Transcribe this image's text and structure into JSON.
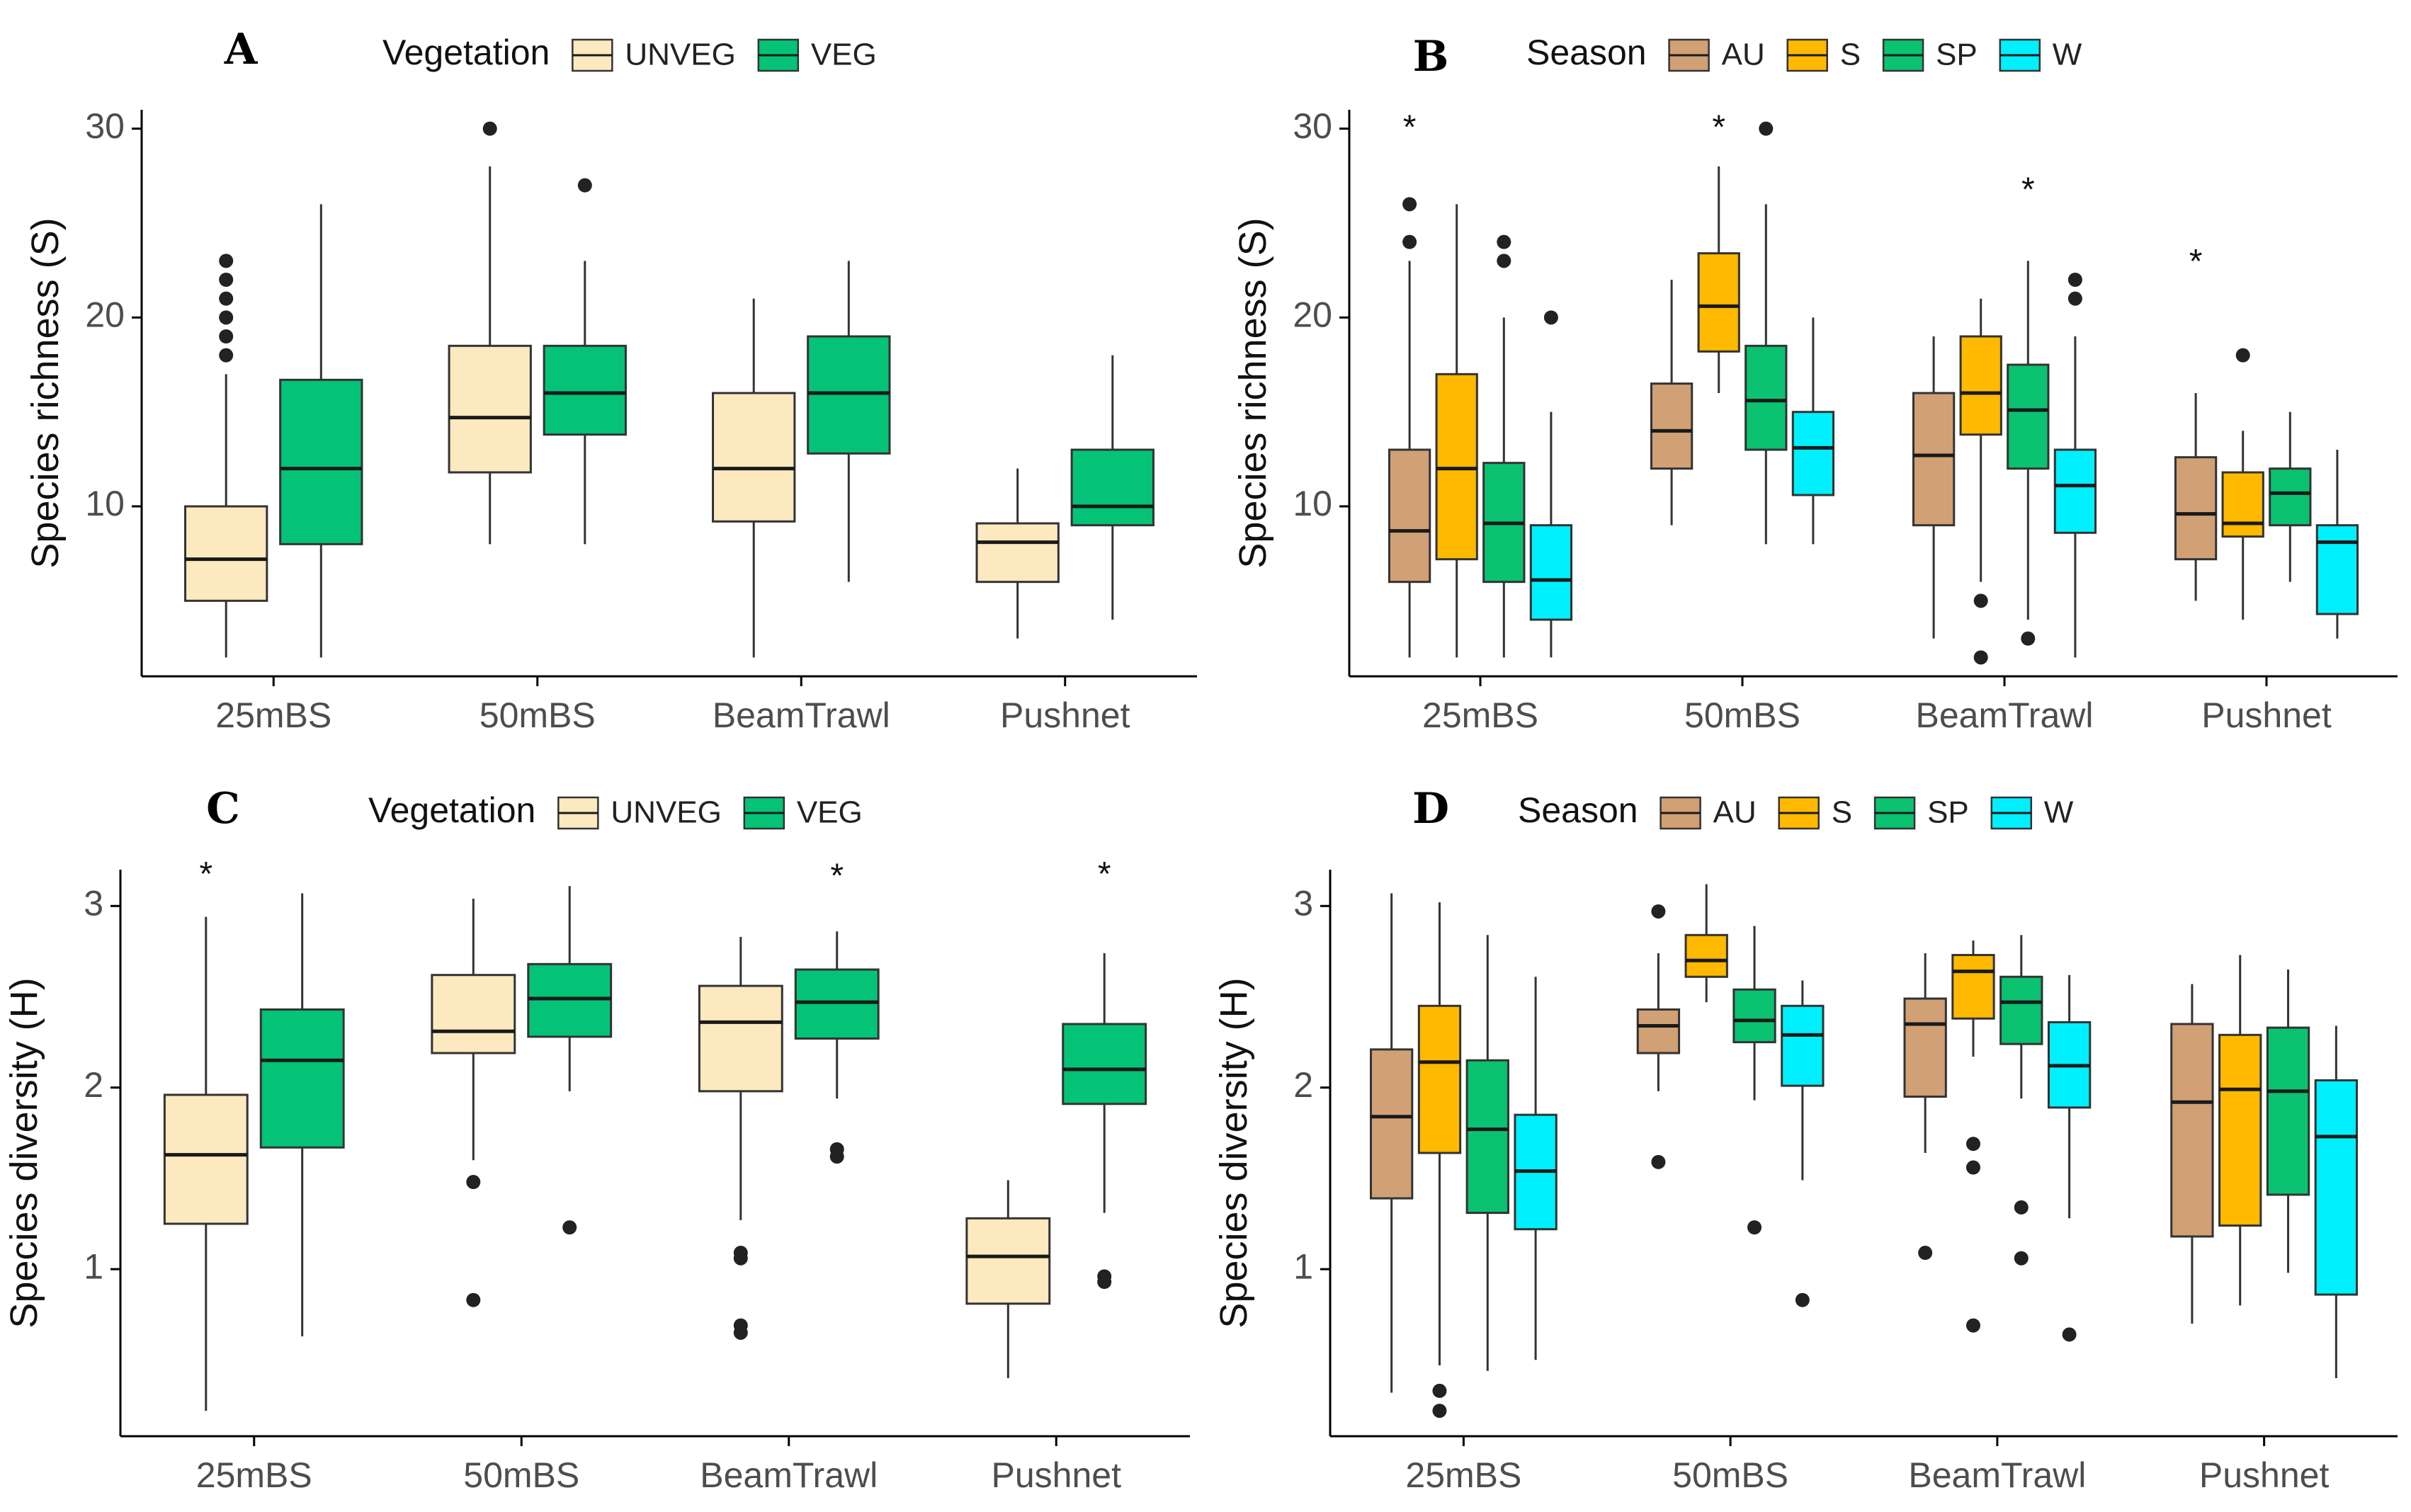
{
  "colors": {
    "UNVEG": "#fde9bf",
    "VEG": "#04c377",
    "AU": "#d1a075",
    "S": "#ffb901",
    "SP": "#0ac270",
    "W": "#00f0ff",
    "median": "#1a1a1a",
    "whisker": "#333333",
    "outlier": "#222222",
    "axis": "#000000"
  },
  "chart_data": [
    {
      "id": "A",
      "type": "boxplot",
      "legend_title": "Vegetation",
      "groups": [
        "UNVEG",
        "VEG"
      ],
      "categories": [
        "25mBS",
        "50mBS",
        "BeamTrawl",
        "Pushnet"
      ],
      "ylabel": "Species richness (S)",
      "ylim": [
        1,
        31
      ],
      "yticks": [
        10,
        20,
        30
      ],
      "boxes": [
        {
          "category": "25mBS",
          "group": "UNVEG",
          "min": 2,
          "q1": 5,
          "median": 7.2,
          "q3": 10,
          "max": 17,
          "outliers": [
            18,
            19,
            20,
            21,
            22,
            23
          ]
        },
        {
          "category": "25mBS",
          "group": "VEG",
          "min": 2,
          "q1": 8,
          "median": 12,
          "q3": 16.7,
          "max": 26,
          "outliers": []
        },
        {
          "category": "50mBS",
          "group": "UNVEG",
          "min": 8,
          "q1": 11.8,
          "median": 14.7,
          "q3": 18.5,
          "max": 28,
          "outliers": [
            30
          ]
        },
        {
          "category": "50mBS",
          "group": "VEG",
          "min": 8,
          "q1": 13.8,
          "median": 16,
          "q3": 18.5,
          "max": 23,
          "outliers": [
            27
          ]
        },
        {
          "category": "BeamTrawl",
          "group": "UNVEG",
          "min": 2,
          "q1": 9.2,
          "median": 12,
          "q3": 16,
          "max": 21,
          "outliers": []
        },
        {
          "category": "BeamTrawl",
          "group": "VEG",
          "min": 6,
          "q1": 12.8,
          "median": 16,
          "q3": 19,
          "max": 23,
          "outliers": []
        },
        {
          "category": "Pushnet",
          "group": "UNVEG",
          "min": 3,
          "q1": 6,
          "median": 8.1,
          "q3": 9.1,
          "max": 12,
          "outliers": []
        },
        {
          "category": "Pushnet",
          "group": "VEG",
          "min": 4,
          "q1": 9,
          "median": 10,
          "q3": 13,
          "max": 18,
          "outliers": []
        }
      ],
      "significance": []
    },
    {
      "id": "B",
      "type": "boxplot",
      "legend_title": "Season",
      "groups": [
        "AU",
        "S",
        "SP",
        "W"
      ],
      "categories": [
        "25mBS",
        "50mBS",
        "BeamTrawl",
        "Pushnet"
      ],
      "ylabel": "Species richness (S)",
      "ylim": [
        1,
        31
      ],
      "yticks": [
        10,
        20,
        30
      ],
      "boxes": [
        {
          "category": "25mBS",
          "group": "AU",
          "min": 2,
          "q1": 6,
          "median": 8.7,
          "q3": 13,
          "max": 23,
          "outliers": [
            24,
            26
          ]
        },
        {
          "category": "25mBS",
          "group": "S",
          "min": 2,
          "q1": 7.2,
          "median": 12,
          "q3": 17,
          "max": 26,
          "outliers": []
        },
        {
          "category": "25mBS",
          "group": "SP",
          "min": 2,
          "q1": 6,
          "median": 9.1,
          "q3": 12.3,
          "max": 20,
          "outliers": [
            23,
            24
          ]
        },
        {
          "category": "25mBS",
          "group": "W",
          "min": 2,
          "q1": 4,
          "median": 6.1,
          "q3": 9,
          "max": 15,
          "outliers": [
            20
          ]
        },
        {
          "category": "50mBS",
          "group": "AU",
          "min": 9,
          "q1": 12,
          "median": 14,
          "q3": 16.5,
          "max": 22,
          "outliers": []
        },
        {
          "category": "50mBS",
          "group": "S",
          "min": 16,
          "q1": 18.2,
          "median": 20.6,
          "q3": 23.4,
          "max": 28,
          "outliers": []
        },
        {
          "category": "50mBS",
          "group": "SP",
          "min": 8,
          "q1": 13,
          "median": 15.6,
          "q3": 18.5,
          "max": 26,
          "outliers": [
            30
          ]
        },
        {
          "category": "50mBS",
          "group": "W",
          "min": 8,
          "q1": 10.6,
          "median": 13.1,
          "q3": 15,
          "max": 20,
          "outliers": []
        },
        {
          "category": "BeamTrawl",
          "group": "AU",
          "min": 3,
          "q1": 9,
          "median": 12.7,
          "q3": 16,
          "max": 19,
          "outliers": []
        },
        {
          "category": "BeamTrawl",
          "group": "S",
          "min": 6,
          "q1": 13.8,
          "median": 16,
          "q3": 19,
          "max": 21,
          "outliers": [
            2,
            5
          ]
        },
        {
          "category": "BeamTrawl",
          "group": "SP",
          "min": 4,
          "q1": 12,
          "median": 15.1,
          "q3": 17.5,
          "max": 23,
          "outliers": [
            3
          ]
        },
        {
          "category": "BeamTrawl",
          "group": "W",
          "min": 2,
          "q1": 8.6,
          "median": 11.1,
          "q3": 13,
          "max": 19,
          "outliers": [
            21,
            22
          ]
        },
        {
          "category": "Pushnet",
          "group": "AU",
          "min": 5,
          "q1": 7.2,
          "median": 9.6,
          "q3": 12.6,
          "max": 16,
          "outliers": []
        },
        {
          "category": "Pushnet",
          "group": "S",
          "min": 4,
          "q1": 8.4,
          "median": 9.1,
          "q3": 11.8,
          "max": 14,
          "outliers": [
            18
          ]
        },
        {
          "category": "Pushnet",
          "group": "SP",
          "min": 6,
          "q1": 9,
          "median": 10.7,
          "q3": 12,
          "max": 15,
          "outliers": []
        },
        {
          "category": "Pushnet",
          "group": "W",
          "min": 3,
          "q1": 4.3,
          "median": 8.1,
          "q3": 9,
          "max": 13,
          "outliers": []
        }
      ],
      "significance": [
        {
          "category": "25mBS",
          "group": "AU",
          "label": "*",
          "y": 30.3
        },
        {
          "category": "50mBS",
          "group": "S",
          "label": "*",
          "y": 30.3
        },
        {
          "category": "BeamTrawl",
          "group": "SP",
          "label": "*",
          "y": 27.0
        },
        {
          "category": "Pushnet",
          "group": "AU",
          "label": "*",
          "y": 23.2
        }
      ]
    },
    {
      "id": "C",
      "type": "boxplot",
      "legend_title": "Vegetation",
      "groups": [
        "UNVEG",
        "VEG"
      ],
      "categories": [
        "25mBS",
        "50mBS",
        "BeamTrawl",
        "Pushnet"
      ],
      "ylabel": "Species diversity (H)",
      "ylim": [
        0.08,
        3.2
      ],
      "yticks": [
        1,
        2,
        3
      ],
      "boxes": [
        {
          "category": "25mBS",
          "group": "UNVEG",
          "min": 0.22,
          "q1": 1.25,
          "median": 1.63,
          "q3": 1.96,
          "max": 2.94,
          "outliers": []
        },
        {
          "category": "25mBS",
          "group": "VEG",
          "min": 0.63,
          "q1": 1.67,
          "median": 2.15,
          "q3": 2.43,
          "max": 3.07,
          "outliers": []
        },
        {
          "category": "50mBS",
          "group": "UNVEG",
          "min": 1.6,
          "q1": 2.19,
          "median": 2.31,
          "q3": 2.62,
          "max": 3.04,
          "outliers": [
            1.48,
            0.83
          ]
        },
        {
          "category": "50mBS",
          "group": "VEG",
          "min": 1.98,
          "q1": 2.28,
          "median": 2.49,
          "q3": 2.68,
          "max": 3.11,
          "outliers": [
            1.23
          ]
        },
        {
          "category": "BeamTrawl",
          "group": "UNVEG",
          "min": 1.27,
          "q1": 1.98,
          "median": 2.36,
          "q3": 2.56,
          "max": 2.83,
          "outliers": [
            1.09,
            1.06,
            0.69,
            0.65
          ]
        },
        {
          "category": "BeamTrawl",
          "group": "VEG",
          "min": 1.94,
          "q1": 2.27,
          "median": 2.47,
          "q3": 2.65,
          "max": 2.86,
          "outliers": [
            1.66,
            1.62
          ]
        },
        {
          "category": "Pushnet",
          "group": "UNVEG",
          "min": 0.4,
          "q1": 0.81,
          "median": 1.07,
          "q3": 1.28,
          "max": 1.49,
          "outliers": []
        },
        {
          "category": "Pushnet",
          "group": "VEG",
          "min": 1.31,
          "q1": 1.91,
          "median": 2.1,
          "q3": 2.35,
          "max": 2.74,
          "outliers": [
            0.96,
            0.93
          ]
        }
      ],
      "significance": [
        {
          "category": "25mBS",
          "group": "UNVEG",
          "label": "*",
          "y": 3.2
        },
        {
          "category": "BeamTrawl",
          "group": "VEG",
          "label": "*",
          "y": 3.19
        },
        {
          "category": "Pushnet",
          "group": "VEG",
          "label": "*",
          "y": 3.2
        }
      ]
    },
    {
      "id": "D",
      "type": "boxplot",
      "legend_title": "Season",
      "groups": [
        "AU",
        "S",
        "SP",
        "W"
      ],
      "categories": [
        "25mBS",
        "50mBS",
        "BeamTrawl",
        "Pushnet"
      ],
      "ylabel": "Species diversity (H)",
      "ylim": [
        0.08,
        3.2
      ],
      "yticks": [
        1,
        2,
        3
      ],
      "boxes": [
        {
          "category": "25mBS",
          "group": "AU",
          "min": 0.32,
          "q1": 1.39,
          "median": 1.84,
          "q3": 2.21,
          "max": 3.07,
          "outliers": []
        },
        {
          "category": "25mBS",
          "group": "S",
          "min": 0.47,
          "q1": 1.64,
          "median": 2.14,
          "q3": 2.45,
          "max": 3.02,
          "outliers": [
            0.33,
            0.22
          ]
        },
        {
          "category": "25mBS",
          "group": "SP",
          "min": 0.44,
          "q1": 1.31,
          "median": 1.77,
          "q3": 2.15,
          "max": 2.84,
          "outliers": []
        },
        {
          "category": "25mBS",
          "group": "W",
          "min": 0.5,
          "q1": 1.22,
          "median": 1.54,
          "q3": 1.85,
          "max": 2.61,
          "outliers": []
        },
        {
          "category": "50mBS",
          "group": "AU",
          "min": 1.98,
          "q1": 2.19,
          "median": 2.34,
          "q3": 2.43,
          "max": 2.74,
          "outliers": [
            2.97,
            1.59
          ]
        },
        {
          "category": "50mBS",
          "group": "S",
          "min": 2.47,
          "q1": 2.61,
          "median": 2.7,
          "q3": 2.84,
          "max": 3.12,
          "outliers": []
        },
        {
          "category": "50mBS",
          "group": "SP",
          "min": 1.93,
          "q1": 2.25,
          "median": 2.37,
          "q3": 2.54,
          "max": 2.89,
          "outliers": [
            1.23
          ]
        },
        {
          "category": "50mBS",
          "group": "W",
          "min": 1.49,
          "q1": 2.01,
          "median": 2.29,
          "q3": 2.45,
          "max": 2.59,
          "outliers": [
            0.83
          ]
        },
        {
          "category": "BeamTrawl",
          "group": "AU",
          "min": 1.64,
          "q1": 1.95,
          "median": 2.35,
          "q3": 2.49,
          "max": 2.74,
          "outliers": [
            1.09
          ]
        },
        {
          "category": "BeamTrawl",
          "group": "S",
          "min": 2.17,
          "q1": 2.38,
          "median": 2.64,
          "q3": 2.73,
          "max": 2.81,
          "outliers": [
            1.69,
            1.56,
            0.69
          ]
        },
        {
          "category": "BeamTrawl",
          "group": "SP",
          "min": 1.94,
          "q1": 2.24,
          "median": 2.47,
          "q3": 2.61,
          "max": 2.84,
          "outliers": [
            1.34,
            1.06
          ]
        },
        {
          "category": "BeamTrawl",
          "group": "W",
          "min": 1.28,
          "q1": 1.89,
          "median": 2.12,
          "q3": 2.36,
          "max": 2.62,
          "outliers": [
            0.64
          ]
        },
        {
          "category": "Pushnet",
          "group": "AU",
          "min": 0.7,
          "q1": 1.18,
          "median": 1.92,
          "q3": 2.35,
          "max": 2.57,
          "outliers": []
        },
        {
          "category": "Pushnet",
          "group": "S",
          "min": 0.8,
          "q1": 1.24,
          "median": 1.99,
          "q3": 2.29,
          "max": 2.73,
          "outliers": []
        },
        {
          "category": "Pushnet",
          "group": "SP",
          "min": 0.98,
          "q1": 1.41,
          "median": 1.98,
          "q3": 2.33,
          "max": 2.65,
          "outliers": []
        },
        {
          "category": "Pushnet",
          "group": "W",
          "min": 0.4,
          "q1": 0.86,
          "median": 1.73,
          "q3": 2.04,
          "max": 2.34,
          "outliers": []
        }
      ],
      "significance": []
    }
  ]
}
